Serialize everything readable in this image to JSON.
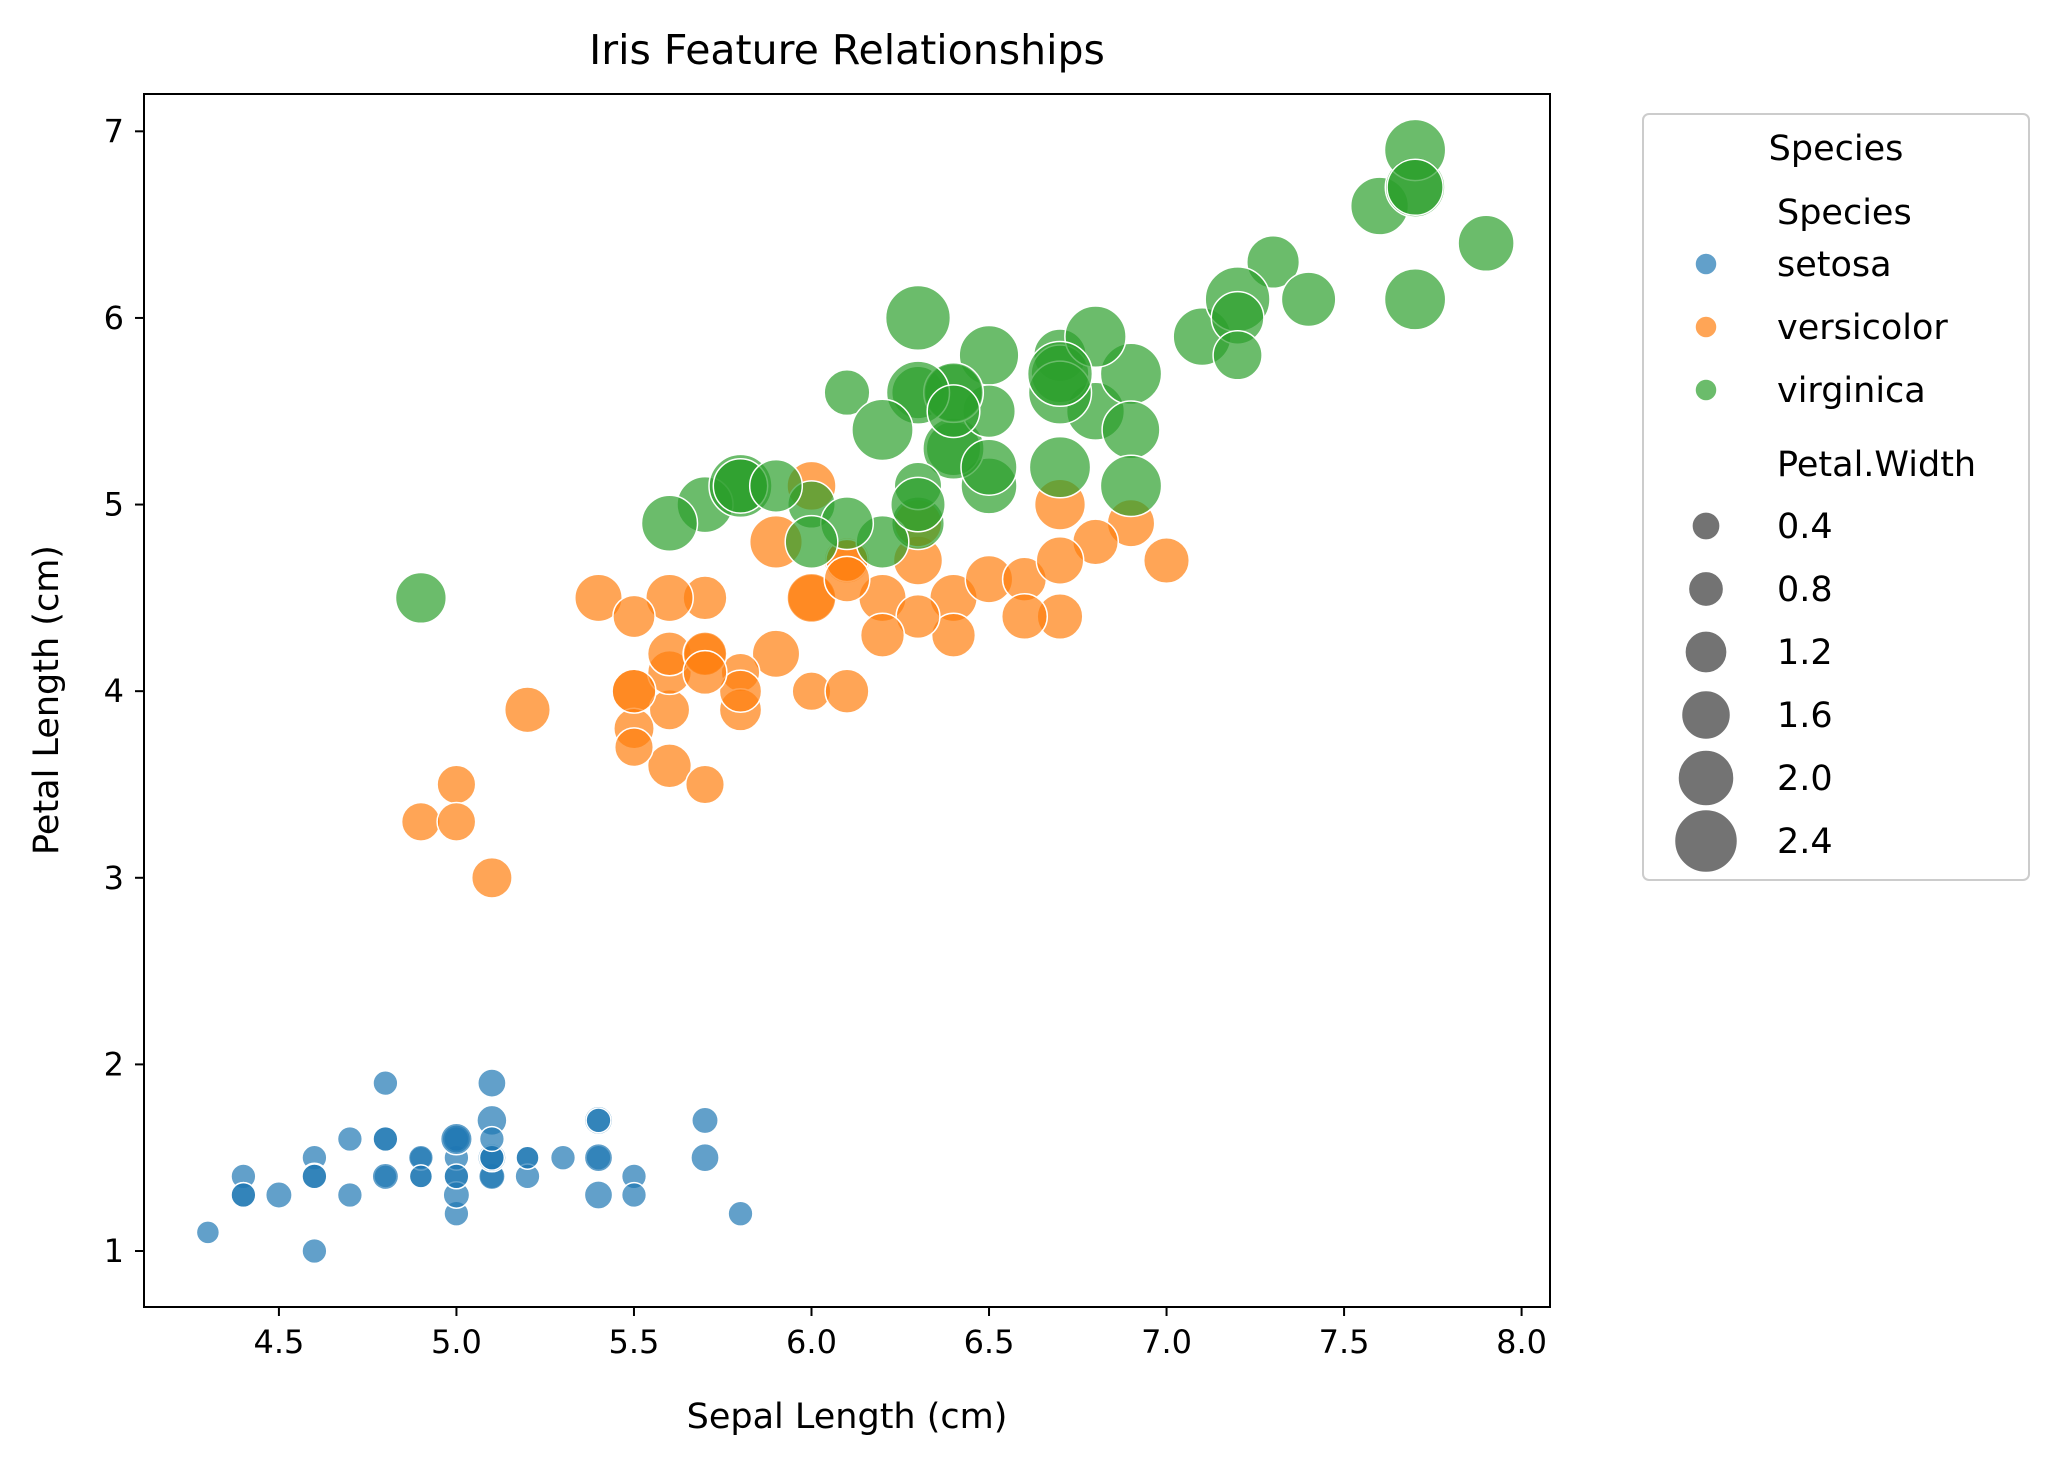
{
  "chart_data": {
    "type": "scatter",
    "title": "Iris Feature Relationships",
    "xlabel": "Sepal Length (cm)",
    "ylabel": "Petal Length (cm)",
    "xlim": [
      4.12,
      8.08
    ],
    "ylim": [
      0.7,
      7.2
    ],
    "xticks": [
      "4.5",
      "5.0",
      "5.5",
      "6.0",
      "6.5",
      "7.0",
      "7.5",
      "8.0"
    ],
    "yticks": [
      "1",
      "2",
      "3",
      "4",
      "5",
      "6",
      "7"
    ],
    "grid": false,
    "legend": {
      "placement": "outside-right",
      "title": "Species",
      "hue_heading": "Species",
      "size_heading": "Petal.Width",
      "size_entries": [
        "0.4",
        "0.8",
        "1.2",
        "1.6",
        "2.0",
        "2.4"
      ]
    },
    "series": [
      {
        "name": "setosa",
        "color": "#1f77b4",
        "points": [
          [
            5.1,
            1.4,
            0.2
          ],
          [
            4.9,
            1.4,
            0.2
          ],
          [
            4.7,
            1.3,
            0.2
          ],
          [
            4.6,
            1.5,
            0.2
          ],
          [
            5.0,
            1.4,
            0.2
          ],
          [
            5.4,
            1.7,
            0.4
          ],
          [
            4.6,
            1.4,
            0.3
          ],
          [
            5.0,
            1.5,
            0.2
          ],
          [
            4.4,
            1.4,
            0.2
          ],
          [
            4.9,
            1.5,
            0.1
          ],
          [
            5.4,
            1.5,
            0.2
          ],
          [
            4.8,
            1.6,
            0.2
          ],
          [
            4.8,
            1.4,
            0.1
          ],
          [
            4.3,
            1.1,
            0.1
          ],
          [
            5.8,
            1.2,
            0.2
          ],
          [
            5.7,
            1.5,
            0.4
          ],
          [
            5.4,
            1.3,
            0.4
          ],
          [
            5.1,
            1.4,
            0.3
          ],
          [
            5.7,
            1.7,
            0.3
          ],
          [
            5.1,
            1.5,
            0.3
          ],
          [
            5.4,
            1.7,
            0.2
          ],
          [
            5.1,
            1.5,
            0.4
          ],
          [
            4.6,
            1.0,
            0.2
          ],
          [
            5.1,
            1.7,
            0.5
          ],
          [
            4.8,
            1.9,
            0.2
          ],
          [
            5.0,
            1.6,
            0.2
          ],
          [
            5.0,
            1.6,
            0.4
          ],
          [
            5.2,
            1.5,
            0.2
          ],
          [
            5.2,
            1.4,
            0.2
          ],
          [
            4.7,
            1.6,
            0.2
          ],
          [
            4.8,
            1.6,
            0.2
          ],
          [
            5.4,
            1.5,
            0.4
          ],
          [
            5.2,
            1.5,
            0.1
          ],
          [
            5.5,
            1.4,
            0.2
          ],
          [
            4.9,
            1.5,
            0.2
          ],
          [
            5.0,
            1.2,
            0.2
          ],
          [
            5.5,
            1.3,
            0.2
          ],
          [
            4.9,
            1.4,
            0.1
          ],
          [
            4.4,
            1.3,
            0.2
          ],
          [
            5.1,
            1.5,
            0.2
          ],
          [
            5.0,
            1.3,
            0.3
          ],
          [
            4.5,
            1.3,
            0.3
          ],
          [
            4.4,
            1.3,
            0.2
          ],
          [
            5.0,
            1.6,
            0.6
          ],
          [
            5.1,
            1.9,
            0.4
          ],
          [
            4.8,
            1.4,
            0.3
          ],
          [
            5.1,
            1.6,
            0.2
          ],
          [
            4.6,
            1.4,
            0.2
          ],
          [
            5.3,
            1.5,
            0.2
          ],
          [
            5.0,
            1.4,
            0.2
          ]
        ]
      },
      {
        "name": "versicolor",
        "color": "#ff7f0e",
        "points": [
          [
            7.0,
            4.7,
            1.4
          ],
          [
            6.4,
            4.5,
            1.5
          ],
          [
            6.9,
            4.9,
            1.5
          ],
          [
            5.5,
            4.0,
            1.3
          ],
          [
            6.5,
            4.6,
            1.5
          ],
          [
            5.7,
            4.5,
            1.3
          ],
          [
            6.3,
            4.7,
            1.6
          ],
          [
            4.9,
            3.3,
            1.0
          ],
          [
            6.6,
            4.6,
            1.3
          ],
          [
            5.2,
            3.9,
            1.4
          ],
          [
            5.0,
            3.5,
            1.0
          ],
          [
            5.9,
            4.2,
            1.5
          ],
          [
            6.0,
            4.0,
            1.0
          ],
          [
            6.1,
            4.7,
            1.4
          ],
          [
            5.6,
            3.6,
            1.3
          ],
          [
            6.7,
            4.4,
            1.4
          ],
          [
            5.6,
            4.5,
            1.5
          ],
          [
            5.8,
            4.1,
            1.0
          ],
          [
            6.2,
            4.5,
            1.5
          ],
          [
            5.6,
            3.9,
            1.1
          ],
          [
            5.9,
            4.8,
            1.8
          ],
          [
            6.1,
            4.0,
            1.3
          ],
          [
            6.3,
            4.9,
            1.5
          ],
          [
            6.1,
            4.7,
            1.2
          ],
          [
            6.4,
            4.3,
            1.3
          ],
          [
            6.6,
            4.4,
            1.4
          ],
          [
            6.8,
            4.8,
            1.4
          ],
          [
            6.7,
            5.0,
            1.7
          ],
          [
            6.0,
            4.5,
            1.5
          ],
          [
            5.7,
            3.5,
            1.0
          ],
          [
            5.5,
            3.8,
            1.1
          ],
          [
            5.5,
            3.7,
            1.0
          ],
          [
            5.8,
            3.9,
            1.2
          ],
          [
            6.0,
            5.1,
            1.6
          ],
          [
            5.4,
            4.5,
            1.5
          ],
          [
            6.0,
            4.5,
            1.6
          ],
          [
            6.7,
            4.7,
            1.5
          ],
          [
            6.3,
            4.4,
            1.3
          ],
          [
            5.6,
            4.1,
            1.3
          ],
          [
            5.5,
            4.0,
            1.3
          ],
          [
            5.5,
            4.4,
            1.2
          ],
          [
            6.1,
            4.6,
            1.4
          ],
          [
            5.8,
            4.0,
            1.2
          ],
          [
            5.0,
            3.3,
            1.0
          ],
          [
            5.6,
            4.2,
            1.3
          ],
          [
            5.7,
            4.2,
            1.2
          ],
          [
            5.7,
            4.2,
            1.3
          ],
          [
            6.2,
            4.3,
            1.3
          ],
          [
            5.1,
            3.0,
            1.1
          ],
          [
            5.7,
            4.1,
            1.3
          ]
        ]
      },
      {
        "name": "virginica",
        "color": "#2ca02c",
        "points": [
          [
            6.3,
            6.0,
            2.5
          ],
          [
            5.8,
            5.1,
            1.9
          ],
          [
            7.1,
            5.9,
            2.1
          ],
          [
            6.3,
            5.6,
            1.8
          ],
          [
            6.5,
            5.8,
            2.2
          ],
          [
            7.6,
            6.6,
            2.1
          ],
          [
            4.9,
            4.5,
            1.7
          ],
          [
            7.3,
            6.3,
            1.8
          ],
          [
            6.7,
            5.8,
            1.8
          ],
          [
            7.2,
            6.1,
            2.5
          ],
          [
            6.5,
            5.1,
            2.0
          ],
          [
            6.4,
            5.3,
            1.9
          ],
          [
            6.8,
            5.5,
            2.1
          ],
          [
            5.7,
            5.0,
            2.0
          ],
          [
            5.8,
            5.1,
            2.4
          ],
          [
            6.4,
            5.3,
            2.3
          ],
          [
            6.5,
            5.5,
            1.8
          ],
          [
            7.7,
            6.7,
            2.2
          ],
          [
            7.7,
            6.9,
            2.3
          ],
          [
            6.0,
            5.0,
            1.5
          ],
          [
            6.9,
            5.7,
            2.3
          ],
          [
            5.6,
            4.9,
            2.0
          ],
          [
            7.7,
            6.7,
            2.0
          ],
          [
            6.3,
            4.9,
            1.8
          ],
          [
            6.7,
            5.7,
            2.1
          ],
          [
            7.2,
            6.0,
            1.8
          ],
          [
            6.2,
            4.8,
            1.8
          ],
          [
            6.1,
            4.9,
            1.8
          ],
          [
            6.4,
            5.6,
            2.1
          ],
          [
            7.2,
            5.8,
            1.6
          ],
          [
            7.4,
            6.1,
            1.9
          ],
          [
            7.9,
            6.4,
            2.0
          ],
          [
            6.4,
            5.6,
            2.2
          ],
          [
            6.3,
            5.1,
            1.5
          ],
          [
            6.1,
            5.6,
            1.4
          ],
          [
            7.7,
            6.1,
            2.3
          ],
          [
            6.3,
            5.6,
            2.4
          ],
          [
            6.4,
            5.5,
            1.8
          ],
          [
            6.0,
            4.8,
            1.8
          ],
          [
            6.9,
            5.4,
            2.1
          ],
          [
            6.7,
            5.6,
            2.4
          ],
          [
            6.9,
            5.1,
            2.3
          ],
          [
            5.8,
            5.1,
            1.9
          ],
          [
            6.8,
            5.9,
            2.3
          ],
          [
            6.7,
            5.7,
            2.5
          ],
          [
            6.7,
            5.2,
            2.3
          ],
          [
            6.3,
            5.0,
            1.9
          ],
          [
            6.5,
            5.2,
            2.0
          ],
          [
            6.2,
            5.4,
            2.3
          ],
          [
            5.9,
            5.1,
            1.8
          ]
        ]
      }
    ]
  }
}
